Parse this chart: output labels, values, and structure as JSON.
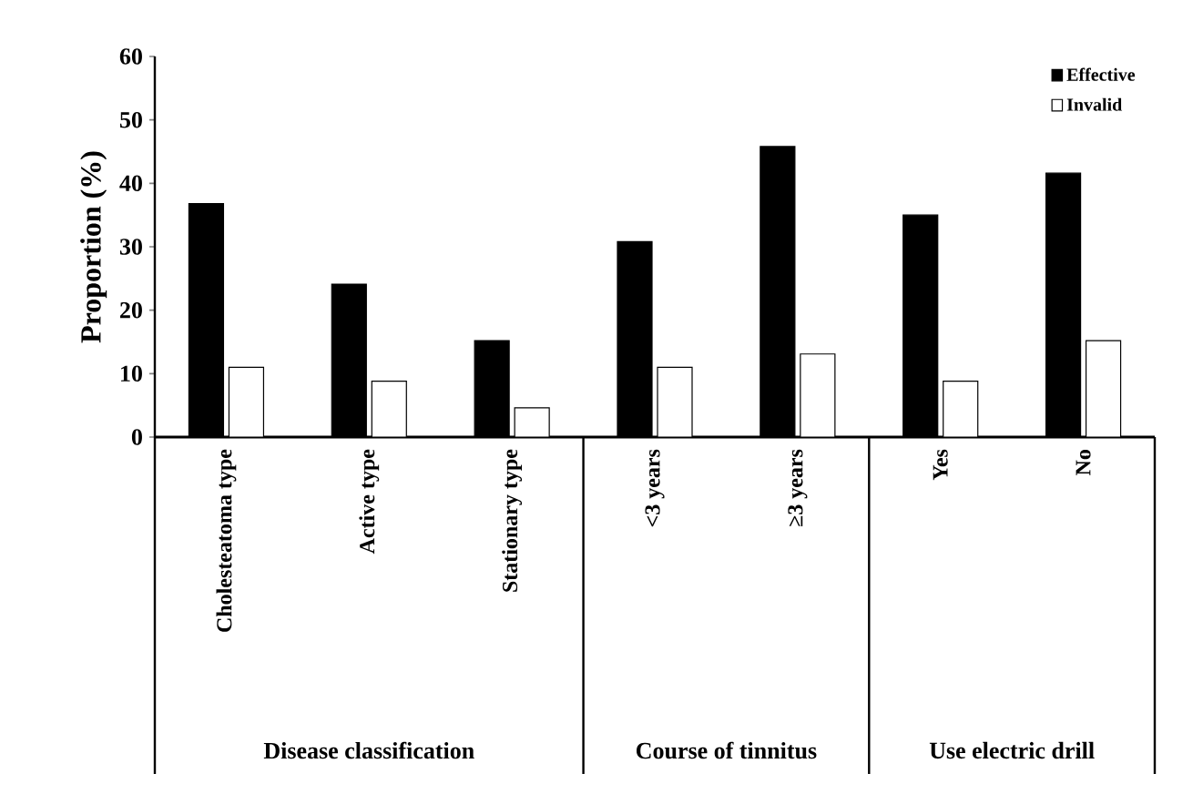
{
  "chart_data": {
    "type": "bar",
    "categories": [
      "Cholesteatoma type",
      "Active type",
      "Stationary type",
      "<3 years",
      "≥3 years",
      "Yes",
      "No"
    ],
    "series": [
      {
        "name": "Effective",
        "color": "#000000",
        "values": [
          36.8,
          24.1,
          15.2,
          30.8,
          45.8,
          35.0,
          41.6
        ]
      },
      {
        "name": "Invalid",
        "color": "#ffffff",
        "values": [
          11.0,
          8.8,
          4.6,
          11.0,
          13.1,
          8.8,
          15.2
        ]
      }
    ],
    "ylabel": "Proportion (%)",
    "ylim": [
      0,
      60
    ],
    "yticks": [
      0,
      10,
      20,
      30,
      40,
      50,
      60
    ],
    "annotations": [
      "Disease classification",
      "Course of tinnitus",
      "Use electric drill"
    ],
    "legend": "top right",
    "grid": false
  }
}
